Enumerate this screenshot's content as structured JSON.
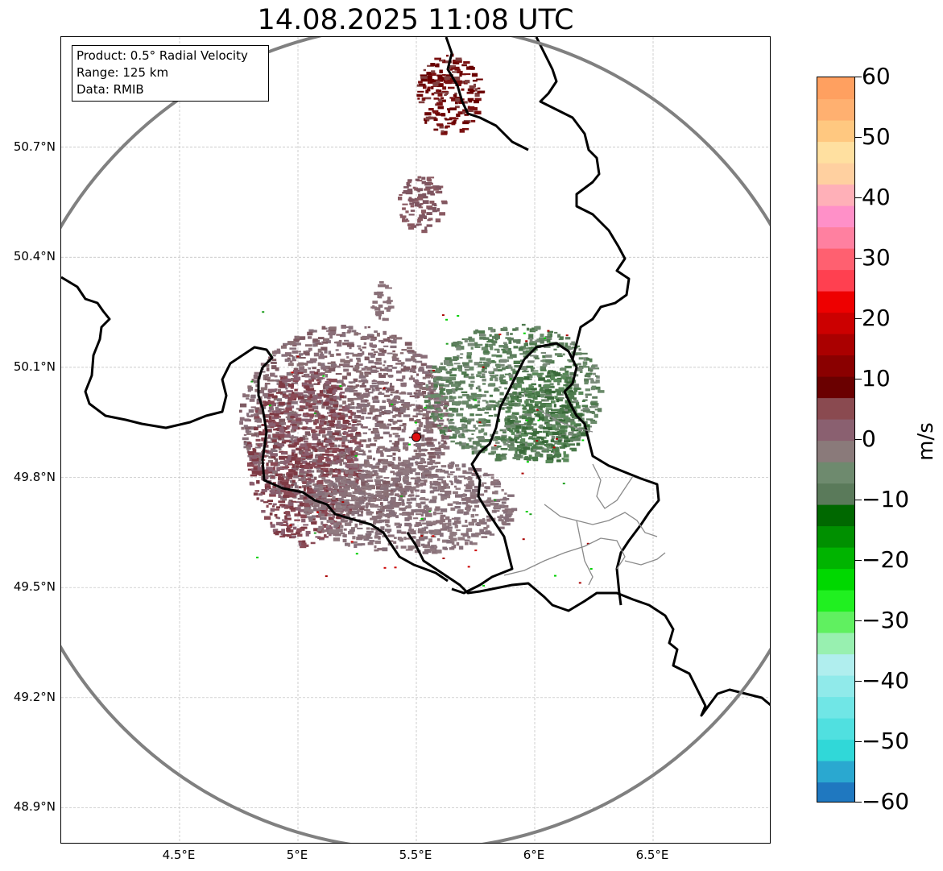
{
  "title": "14.08.2025 11:08 UTC",
  "info_box": {
    "product": "Product: 0.5° Radial Velocity",
    "range": "Range: 125 km",
    "source": "Data: RMIB"
  },
  "map": {
    "lon_range": [
      4.0,
      7.0
    ],
    "lat_range": [
      48.8,
      51.0
    ],
    "lon_ticks": [
      "4.5°E",
      "5°E",
      "5.5°E",
      "6°E",
      "6.5°E"
    ],
    "lat_ticks": [
      "50.7°N",
      "50.4°N",
      "50.1°N",
      "49.8°N",
      "49.5°N",
      "49.2°N",
      "48.9°N"
    ],
    "radar_site": {
      "lon": 5.5,
      "lat": 49.91
    },
    "range_ring_km": 125,
    "colors": {
      "range_ring": "#808080",
      "borders": "#000000",
      "subdivisions": "#888888",
      "radar_marker": "#e01010"
    }
  },
  "colorbar": {
    "unit": "m/s",
    "min": -60,
    "max": 60,
    "tick_labels": [
      "60",
      "50",
      "40",
      "30",
      "20",
      "10",
      "0",
      "−10",
      "−20",
      "−30",
      "−40",
      "−50",
      "−60"
    ],
    "colors": [
      "#1f78c0",
      "#2aa8d0",
      "#30d8d8",
      "#50e0e0",
      "#70e6e6",
      "#90eaea",
      "#b0eeee",
      "#98f0b0",
      "#60f060",
      "#20f020",
      "#00d800",
      "#00b400",
      "#009000",
      "#006800",
      "#5a7a5a",
      "#6e8a6e",
      "#8a7a7a",
      "#8a6070",
      "#8a4a50",
      "#6a0000",
      "#8a0000",
      "#aa0000",
      "#cc0000",
      "#ee0000",
      "#ff4050",
      "#ff6070",
      "#ff80a0",
      "#ff90c8",
      "#ffb0b8",
      "#ffd0a0",
      "#ffe0a0",
      "#ffc880",
      "#ffb070",
      "#ffa060"
    ]
  }
}
